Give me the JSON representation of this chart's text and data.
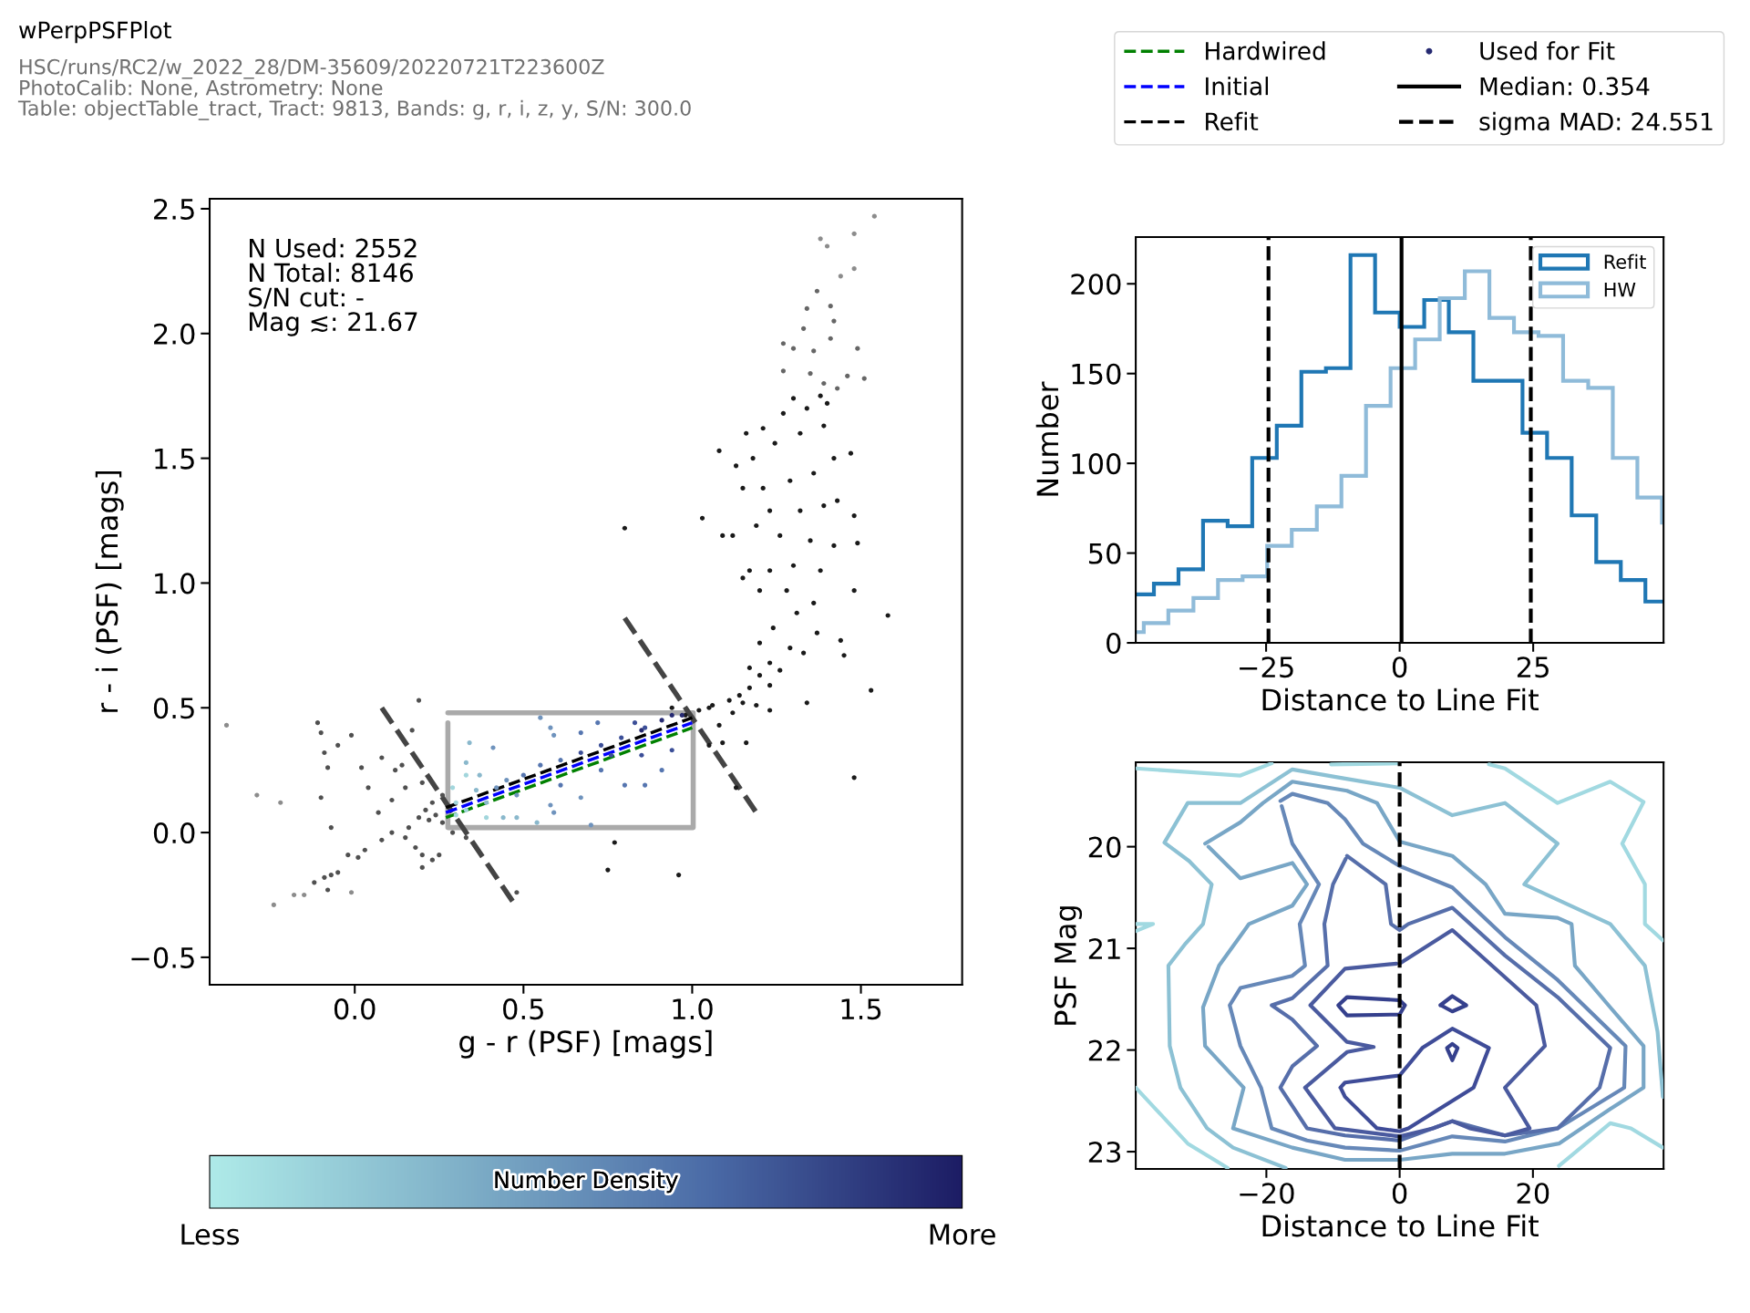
{
  "chart_data": [
    {
      "type": "scatter",
      "title": "wPerpPSFPlot",
      "subtitle": "HSC/runs/RC2/w_2022_28/DM-35609/20220721T223600Z\nPhotoCalib: None, Astrometry: None\nTable: objectTable_tract, Tract: 9813, Bands: g, r, i, z, y, S/N: 300.0",
      "xlabel": "g - r (PSF) [mags]",
      "ylabel": "r - i (PSF) [mags]",
      "xlim": [
        -0.43,
        1.8
      ],
      "ylim": [
        -0.61,
        2.54
      ],
      "xticks": [
        {
          "value": 0,
          "label": "0.0"
        },
        0.5,
        {
          "value": 1,
          "label": "1.0"
        },
        1.5
      ],
      "yticks": [
        {
          "value": -0.5,
          "label": "−0.5"
        },
        {
          "value": 0,
          "label": "0.0"
        },
        0.5,
        {
          "value": 1,
          "label": "1.0"
        },
        1.5,
        {
          "value": 2,
          "label": "2.0"
        },
        2.5
      ],
      "legend": "top right",
      "grid": false,
      "annotations": [
        "N Used: 2552\nN Total: 8146\nS/N cut: -\nMag ≲: 21.67"
      ],
      "clabel": "Number Density",
      "clim": [
        0,
        1
      ],
      "cticks": [
        {
          "value": 0,
          "label": "Less"
        },
        {
          "value": 1,
          "label": "More"
        }
      ],
      "series": [
        {
          "type": "scatter",
          "marker": "circle",
          "color": "#8c8c8c",
          "x": [
            -0.38,
            1.54,
            1.38,
            1.4,
            1.48,
            1.48,
            1.44,
            -0.24,
            -0.18,
            -0.15,
            -0.29,
            -0.22,
            -0.01
          ],
          "values": [
            0.43,
            2.47,
            2.38,
            2.35,
            2.4,
            2.26,
            2.23,
            -0.29,
            -0.25,
            -0.25,
            0.15,
            0.12,
            -0.24
          ]
        },
        {
          "type": "scatter",
          "marker": "circle",
          "color": "#666666",
          "x": [
            1.37,
            1.41,
            1.34,
            1.42,
            1.33,
            1.27,
            1.36,
            1.49,
            1.46,
            1.51,
            1.41,
            1.3,
            1.27,
            1.35,
            1.39,
            1.43
          ],
          "values": [
            2.17,
            2.11,
            2.1,
            2.05,
            2.02,
            1.96,
            1.93,
            1.94,
            1.83,
            1.82,
            1.98,
            1.94,
            1.85,
            1.84,
            1.8,
            1.78
          ]
        },
        {
          "type": "scatter",
          "marker": "circle",
          "color": "#505050",
          "x": [
            -0.11,
            -0.1,
            -0.01,
            -0.05,
            -0.09,
            -0.08,
            -0.1,
            -0.07,
            0.02,
            0.04,
            0.08,
            0.12,
            0.14,
            0.17,
            0.19,
            0.11,
            0.15,
            0.07,
            0.11,
            0.16,
            0.19,
            0.21,
            0.23,
            0.24,
            0.26,
            0.22,
            0.18,
            0.2,
            0.25,
            0.2,
            0.23,
            0.15,
            0.08,
            0.03,
            -0.02,
            0.01,
            -0.05,
            -0.07,
            -0.09,
            -0.12,
            -0.08,
            0.29,
            0.33,
            0.48,
            0.26,
            0.2
          ],
          "values": [
            0.44,
            0.4,
            0.39,
            0.35,
            0.32,
            0.26,
            0.14,
            0.02,
            0.26,
            0.18,
            0.3,
            0.25,
            0.27,
            0.41,
            0.53,
            0.13,
            0.18,
            0.08,
            0.0,
            0.02,
            0.06,
            0.09,
            0.12,
            0.07,
            0.04,
            0.05,
            -0.06,
            -0.09,
            -0.09,
            -0.14,
            -0.11,
            -0.02,
            -0.03,
            -0.07,
            -0.09,
            -0.1,
            -0.16,
            -0.17,
            -0.18,
            -0.2,
            -0.23,
            0.0,
            -0.02,
            -0.24,
            0.15,
            0.2
          ]
        },
        {
          "type": "scatter",
          "marker": "circle",
          "color": "#1a1a1a",
          "x": [
            0.8,
            1.03,
            1.08,
            1.58,
            1.53,
            1.48,
            0.77,
            0.75,
            0.96,
            1.05,
            1.09,
            1.16,
            1.13,
            1.34,
            1.23,
            1.45,
            1.44,
            1.49,
            1.48,
            1.47,
            1.48,
            1.16,
            1.13,
            1.09,
            1.12,
            1.15,
            1.02,
            1.06,
            1.11,
            1.14,
            1.17,
            1.2,
            1.23,
            1.17,
            1.26,
            1.29,
            1.33,
            1.37,
            1.2,
            1.24,
            1.31,
            1.36,
            1.28,
            1.2,
            1.17,
            1.23,
            1.3,
            1.38,
            1.42,
            1.35,
            1.26,
            1.19,
            1.23,
            1.32,
            1.39,
            1.43,
            1.15,
            1.21,
            1.29,
            1.36,
            1.42,
            1.18,
            1.245,
            1.32,
            1.39,
            1.21,
            1.27,
            1.34,
            1.4,
            1.3,
            1.38,
            0.98,
            1.05,
            1.08,
            1.15,
            1.12,
            1.19,
            1.23,
            0.94
          ],
          "values": [
            1.22,
            1.26,
            1.53,
            0.87,
            0.57,
            0.22,
            -0.04,
            -0.15,
            -0.17,
            0.35,
            0.36,
            0.36,
            0.18,
            0.52,
            0.49,
            0.71,
            0.77,
            1.16,
            1.27,
            1.52,
            0.97,
            1.6,
            1.47,
            1.19,
            1.19,
            1.02,
            0.49,
            0.51,
            0.53,
            0.55,
            0.58,
            0.63,
            0.68,
            0.66,
            0.65,
            0.74,
            0.72,
            0.8,
            0.76,
            0.82,
            0.88,
            0.92,
            0.97,
            0.97,
            1.05,
            1.05,
            1.07,
            1.05,
            1.15,
            1.17,
            1.19,
            1.23,
            1.29,
            1.29,
            1.31,
            1.33,
            1.38,
            1.38,
            1.41,
            1.44,
            1.5,
            1.5,
            1.56,
            1.6,
            1.63,
            1.62,
            1.68,
            1.7,
            1.72,
            1.74,
            1.75,
            0.47,
            0.5,
            0.43,
            0.52,
            0.48,
            0.51,
            0.59,
            0.5
          ]
        },
        {
          "type": "scatter",
          "marker": "circle",
          "name": "Used for Fit",
          "x": [
            0.29,
            0.3,
            0.33,
            0.34,
            0.37,
            0.41,
            0.39,
            0.44,
            0.48,
            0.54,
            0.59,
            0.36,
            0.45,
            0.5,
            0.55,
            0.61,
            0.67,
            0.73,
            0.79,
            0.85,
            0.91,
            0.97,
            0.55,
            0.58,
            0.59,
            0.67,
            0.72,
            0.83,
            0.86,
            0.94,
            0.8,
            0.86,
            0.91,
            0.67,
            0.7,
            0.58,
            0.48,
            0.61,
            0.73,
            0.85,
            0.94,
            0.76,
            0.33,
            0.3,
            0.39,
            0.42,
            0.33
          ],
          "values": [
            0.18,
            0.12,
            0.23,
            0.36,
            0.23,
            0.34,
            0.06,
            0.06,
            0.06,
            0.04,
            0.08,
            0.17,
            0.21,
            0.23,
            0.27,
            0.29,
            0.32,
            0.35,
            0.38,
            0.41,
            0.45,
            0.47,
            0.46,
            0.42,
            0.39,
            0.4,
            0.44,
            0.44,
            0.42,
            0.47,
            0.19,
            0.19,
            0.25,
            0.14,
            0.03,
            0.11,
            0.15,
            0.19,
            0.25,
            0.31,
            0.33,
            0.31,
            0.28,
            0.07,
            0.12,
            0.18,
            0.09
          ],
          "colors": [
            "#a2d6dc",
            "#a2d6dc",
            "#a2d6dc",
            "#8ab8cc",
            "#8ab8cc",
            "#6f93bd",
            "#a2d6dc",
            "#8ab8cc",
            "#8ab8cc",
            "#8ab8cc",
            "#6f93bd",
            "#8ab8cc",
            "#6f93bd",
            "#5676b0",
            "#5676b0",
            "#5676b0",
            "#3c4f98",
            "#3c4f98",
            "#3c4f98",
            "#262a72",
            "#262a72",
            "#262a72",
            "#6f93bd",
            "#6f93bd",
            "#6f93bd",
            "#5676b0",
            "#5676b0",
            "#3c4f98",
            "#3c4f98",
            "#262a72",
            "#5676b0",
            "#5676b0",
            "#5676b0",
            "#6f93bd",
            "#6f93bd",
            "#6f93bd",
            "#6f93bd",
            "#5676b0",
            "#5676b0",
            "#3c4f98",
            "#3c4f98",
            "#3c4f98",
            "#8ab8cc",
            "#a2d6dc",
            "#8ab8cc",
            "#6f93bd",
            "#a2d6dc"
          ]
        },
        {
          "type": "line",
          "color": "#aaaaaa",
          "line_style": "solid",
          "x": [
            0.276,
            1.003,
            1.003,
            0.276,
            0.276
          ],
          "values": [
            0.48,
            0.48,
            0.02,
            0.02,
            0.44
          ]
        },
        {
          "type": "line",
          "color": "#444444",
          "line_style": "dashed",
          "x": [
            0.08,
            0.48
          ],
          "values": [
            0.5,
            -0.3
          ]
        },
        {
          "type": "line",
          "color": "#444444",
          "line_style": "dashed",
          "x": [
            0.8,
            1.2
          ],
          "values": [
            0.86,
            0.06
          ]
        },
        {
          "type": "line",
          "name": "Hardwired",
          "color": "#008000",
          "line_style": "dashed",
          "x": [
            0.27,
            1.0
          ],
          "values": [
            0.06,
            0.42
          ]
        },
        {
          "type": "line",
          "name": "Initial",
          "color": "#0000ff",
          "line_style": "dashed",
          "x": [
            0.27,
            1.0
          ],
          "values": [
            0.08,
            0.44
          ]
        },
        {
          "type": "line",
          "name": "Refit",
          "color": "#000000",
          "line_style": "dashed",
          "x": [
            0.27,
            1.0
          ],
          "values": [
            0.1,
            0.46
          ]
        }
      ]
    },
    {
      "type": "step",
      "xlabel": "Distance to Line Fit",
      "ylabel": "Number",
      "xlim": [
        -49.4,
        49.4
      ],
      "ylim": [
        0,
        226
      ],
      "xticks": [
        {
          "value": -25,
          "label": "−25"
        },
        0,
        25
      ],
      "yticks": [
        0,
        50,
        100,
        150,
        200
      ],
      "legend": "top right",
      "grid": false,
      "series": [
        {
          "name": "Refit",
          "color": "#1f77b4",
          "x": [
            -49.4,
            -46.0,
            -41.4,
            -36.8,
            -32.2,
            -27.6,
            -23.0,
            -18.4,
            -13.8,
            -9.2,
            -4.6,
            0,
            4.6,
            9.2,
            13.8,
            18.4,
            23.0,
            27.6,
            32.2,
            36.8,
            41.4,
            46.0
          ],
          "values": [
            27,
            33,
            41,
            68,
            65,
            103,
            121,
            151,
            153,
            216,
            184,
            176,
            191,
            173,
            146,
            146,
            117,
            103,
            71,
            45,
            35,
            23
          ]
        },
        {
          "name": "HW",
          "color": "#8fbbd9",
          "x": [
            -49.4,
            -47.9,
            -43.3,
            -38.6,
            -34.0,
            -29.4,
            -24.8,
            -20.2,
            -15.5,
            -10.9,
            -6.3,
            -1.7,
            2.9,
            7.5,
            12.2,
            16.8,
            21.4,
            26.0,
            30.6,
            35.3,
            39.9,
            44.5,
            49.1
          ],
          "values": [
            6,
            11,
            18,
            25,
            35,
            37,
            54,
            63,
            76,
            93,
            132,
            153,
            169,
            192,
            207,
            181,
            173,
            171,
            146,
            142,
            103,
            81,
            67
          ]
        }
      ],
      "ref_lines": [
        {
          "axis": "x",
          "value": 0.354,
          "label": "Median: 0.354",
          "color": "#000000",
          "line_style": "solid"
        },
        {
          "axis": "x",
          "value": 24.551,
          "label": "sigma MAD: 24.551",
          "color": "#000000",
          "line_style": "dashed"
        },
        {
          "axis": "x",
          "value": -24.551,
          "color": "#000000",
          "line_style": "dashed"
        }
      ]
    },
    {
      "type": "line",
      "xlabel": "Distance to Line Fit",
      "ylabel": "PSF Mag",
      "xlim": [
        -39.6,
        39.6
      ],
      "ylim": [
        23.17,
        19.17
      ],
      "xticks": [
        {
          "value": -20,
          "label": "−20"
        },
        0,
        20
      ],
      "yticks": [
        20,
        21,
        22,
        23
      ],
      "grid": false,
      "ref_lines": [
        {
          "axis": "x",
          "value": 0,
          "color": "#000000",
          "line_style": "dashed"
        }
      ],
      "series": [
        {
          "color": "#a1d9e1",
          "x": [
            -39.6,
            -23.9,
            -19.2
          ],
          "values": [
            19.23,
            19.3,
            19.18
          ]
        },
        {
          "color": "#a1d9e1",
          "x": [
            -10.3,
            -0.3
          ],
          "values": [
            19.19,
            19.18
          ]
        },
        {
          "color": "#a1d9e1",
          "x": [
            13.4,
            15.8,
            23.7,
            31.6,
            36.6,
            33.4,
            36.8,
            36.8,
            39.5
          ],
          "values": [
            19.19,
            19.23,
            19.57,
            19.36,
            19.56,
            19.97,
            20.37,
            20.76,
            20.92
          ]
        },
        {
          "color": "#a1d9e1",
          "x": [
            -39.6,
            -37.0,
            -39.6
          ],
          "values": [
            20.76,
            20.76,
            20.83
          ]
        },
        {
          "color": "#a1d9e1",
          "x": [
            -39.6,
            -31.8,
            -25.8
          ],
          "values": [
            22.37,
            22.92,
            23.16
          ]
        },
        {
          "color": "#a1d9e1",
          "x": [
            23.9,
            31.6,
            34.7,
            39.5
          ],
          "values": [
            23.14,
            22.72,
            22.77,
            22.96
          ]
        },
        {
          "color": "#8cc1d4",
          "x": [
            -17.1,
            -25.0,
            -28.9,
            -32.9,
            -34.5,
            -34.7,
            -32.1,
            -29.5,
            -28.2,
            -31.6,
            -35.3,
            -31.8,
            -23.9,
            -16.1,
            -8.2,
            0,
            7.9,
            15.8,
            23.7,
            18.7,
            31.6,
            36.8,
            38.7,
            39.5
          ],
          "values": [
            23.16,
            22.96,
            22.77,
            22.37,
            21.96,
            21.17,
            20.95,
            20.76,
            20.37,
            20.14,
            19.96,
            19.57,
            19.57,
            19.24,
            19.33,
            19.42,
            19.69,
            19.57,
            19.97,
            20.37,
            20.76,
            21.17,
            21.82,
            22.46
          ]
        },
        {
          "color": "#78a6c6",
          "x": [
            -29.2,
            -23.9,
            -20.5,
            -16.1,
            -7.9,
            -3.4,
            0,
            7.9,
            12.9,
            15.8,
            23.7,
            25.8,
            26.3,
            31.6,
            36.6,
            36.6,
            31.6,
            23.9,
            15.8,
            7.9,
            0,
            -8.2,
            -16.1,
            -25.0,
            -23.4,
            -29.2,
            -29.5,
            -27.1,
            -22.6,
            -16.1,
            -13.9,
            -16.1,
            -23.9,
            -28.7
          ],
          "values": [
            19.97,
            19.76,
            19.57,
            19.36,
            19.45,
            19.57,
            19.95,
            20.09,
            20.37,
            20.66,
            20.7,
            20.76,
            21.17,
            21.58,
            21.96,
            22.37,
            22.58,
            22.92,
            23.02,
            23.02,
            23.08,
            23.08,
            22.96,
            22.77,
            22.37,
            21.96,
            21.58,
            21.17,
            20.76,
            20.58,
            20.37,
            20.16,
            20.31,
            20.0
          ]
        },
        {
          "color": "#6688b8",
          "x": [
            -17.9,
            -16.1,
            -10.8,
            -8.2,
            -5.5,
            0,
            7.9,
            15.8,
            23.7,
            33.9,
            33.7,
            23.7,
            15.8,
            7.9,
            0,
            -8.2,
            -13.9,
            -19.2,
            -20.8,
            -23.9,
            -25.5,
            -23.9,
            -16.1,
            -14.2,
            -15.0,
            -12.1,
            -16.1,
            -17.7
          ],
          "values": [
            19.55,
            19.48,
            19.57,
            19.73,
            19.97,
            20.19,
            20.4,
            20.89,
            21.31,
            21.96,
            22.37,
            22.77,
            22.9,
            22.85,
            22.99,
            22.96,
            22.89,
            22.77,
            22.37,
            21.96,
            21.56,
            21.39,
            21.27,
            21.17,
            20.76,
            20.37,
            19.97,
            19.6
          ]
        },
        {
          "color": "#566eaa",
          "x": [
            -7.9,
            -2.1,
            -1.3,
            0,
            1.3,
            7.9,
            15.8,
            23.7,
            31.6,
            30.0,
            23.7,
            15.8,
            7.9,
            0,
            -8.2,
            -13.9,
            -17.9,
            -16.1,
            -12.4,
            -16.1,
            -19.2,
            -16.1,
            -10.8,
            -11.3,
            -10.0,
            -8.1
          ],
          "values": [
            20.09,
            20.37,
            20.76,
            20.82,
            20.76,
            20.6,
            21.07,
            21.48,
            21.98,
            22.37,
            22.77,
            22.84,
            22.7,
            22.89,
            22.84,
            22.77,
            22.37,
            22.16,
            21.96,
            21.7,
            21.56,
            21.49,
            21.17,
            20.76,
            20.37,
            20.12
          ]
        },
        {
          "color": "#4a5a9f",
          "x": [
            0,
            7.9,
            20.5,
            21.8,
            15.8,
            19.5,
            15.8,
            10.5,
            7.9,
            5.0,
            0,
            -9.7,
            -14.2,
            -7.9,
            -3.9,
            -7.9,
            -13.4,
            -8.2,
            -0.5
          ],
          "values": [
            21.15,
            20.82,
            21.56,
            21.96,
            22.37,
            22.77,
            22.84,
            22.77,
            22.7,
            22.77,
            22.85,
            22.77,
            22.37,
            22.02,
            21.97,
            21.92,
            21.56,
            21.2,
            21.15
          ]
        },
        {
          "color": "#3f4c98",
          "x": [
            -8.9,
            -8.2,
            0,
            3.4,
            7.9,
            13.4,
            11.1,
            1.3,
            0,
            -3.4,
            -8.2,
            -8.8
          ],
          "values": [
            22.37,
            22.32,
            22.25,
            21.98,
            21.79,
            21.98,
            22.37,
            22.77,
            22.8,
            22.77,
            22.46,
            22.38
          ]
        },
        {
          "color": "#35408d",
          "x": [
            -9.2,
            -7.9,
            0,
            0.8,
            0,
            -7.9,
            -9.1
          ],
          "values": [
            21.56,
            21.48,
            21.51,
            21.56,
            21.65,
            21.66,
            21.57
          ]
        },
        {
          "color": "#35408d",
          "x": [
            6.1,
            7.9,
            10.0,
            7.9,
            6.2
          ],
          "values": [
            21.56,
            21.47,
            21.56,
            21.62,
            21.56
          ]
        },
        {
          "color": "#35408d",
          "x": [
            7.1,
            7.9,
            8.7,
            7.9,
            7.15
          ],
          "values": [
            21.98,
            21.94,
            21.98,
            22.1,
            21.99
          ]
        }
      ]
    }
  ]
}
